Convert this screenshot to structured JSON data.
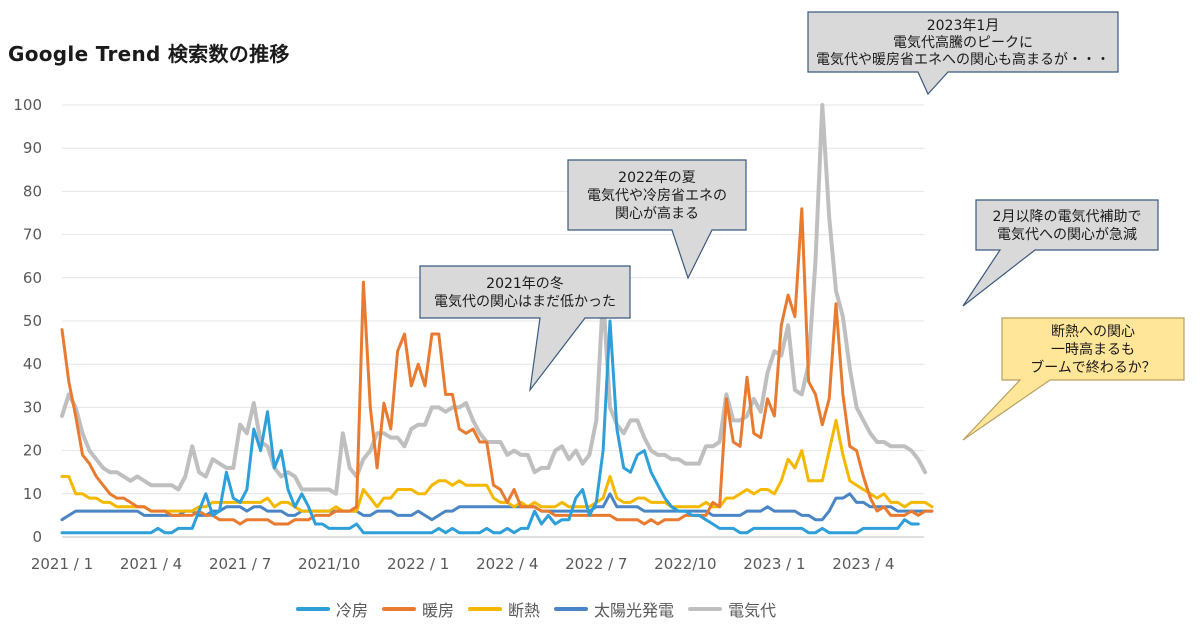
{
  "chart_data": {
    "type": "line",
    "title": "Google Trend 検索数の推移",
    "ylim": [
      0,
      100
    ],
    "y_ticks": [
      "0",
      "10",
      "20",
      "30",
      "40",
      "50",
      "60",
      "70",
      "80",
      "90",
      "100"
    ],
    "x_ticks": [
      "2021 / 1",
      "2021 / 4",
      "2021 / 7",
      "2021/10",
      "2022 / 1",
      "2022 / 4",
      "2022 / 7",
      "2022/10",
      "2023 / 1",
      "2023 / 4"
    ],
    "x_tick_week_index": [
      0,
      13,
      26,
      39,
      52,
      65,
      78,
      91,
      104,
      117
    ],
    "grid": true,
    "legend_position": "bottom",
    "series": [
      {
        "name": "冷房",
        "color": "#2E9FD8",
        "values": [
          1,
          1,
          1,
          1,
          1,
          1,
          1,
          1,
          1,
          1,
          1,
          1,
          1,
          1,
          2,
          1,
          1,
          2,
          2,
          2,
          6,
          10,
          5,
          6,
          15,
          9,
          8,
          11,
          25,
          20,
          29,
          16,
          20,
          11,
          7,
          10,
          7,
          3,
          3,
          2,
          2,
          2,
          2,
          3,
          1,
          1,
          1,
          1,
          1,
          1,
          1,
          1,
          1,
          1,
          1,
          2,
          1,
          2,
          1,
          1,
          1,
          1,
          2,
          1,
          1,
          2,
          1,
          2,
          2,
          6,
          3,
          5,
          3,
          4,
          4,
          9,
          11,
          5,
          8,
          20,
          50,
          25,
          16,
          15,
          19,
          20,
          15,
          12,
          9,
          7,
          6,
          6,
          5,
          5,
          4,
          3,
          2,
          2,
          2,
          1,
          1,
          2,
          2,
          2,
          2,
          2,
          2,
          2,
          2,
          1,
          1,
          2,
          1,
          1,
          1,
          1,
          1,
          2,
          2,
          2,
          2,
          2,
          2,
          4,
          3,
          3
        ]
      },
      {
        "name": "暖房",
        "color": "#E97B30",
        "values": [
          48,
          36,
          28,
          19,
          17,
          14,
          12,
          10,
          9,
          9,
          8,
          7,
          7,
          6,
          6,
          6,
          5,
          5,
          5,
          5,
          6,
          5,
          5,
          4,
          4,
          4,
          3,
          4,
          4,
          4,
          4,
          3,
          3,
          3,
          4,
          4,
          4,
          5,
          5,
          5,
          6,
          6,
          6,
          7,
          59,
          30,
          16,
          31,
          25,
          43,
          47,
          35,
          40,
          35,
          47,
          47,
          33,
          33,
          25,
          24,
          25,
          22,
          22,
          12,
          11,
          8,
          11,
          7,
          7,
          7,
          6,
          6,
          5,
          5,
          5,
          5,
          5,
          5,
          5,
          5,
          5,
          4,
          4,
          4,
          4,
          3,
          4,
          3,
          4,
          4,
          4,
          5,
          5,
          5,
          5,
          8,
          7,
          32,
          22,
          21,
          37,
          24,
          23,
          32,
          28,
          49,
          56,
          51,
          76,
          36,
          33,
          26,
          32,
          54,
          33,
          21,
          20,
          14,
          9,
          6,
          7,
          5,
          5,
          5,
          6,
          5,
          6,
          6
        ]
      },
      {
        "name": "断熱",
        "color": "#F5B800",
        "values": [
          14,
          14,
          10,
          10,
          9,
          9,
          8,
          8,
          7,
          7,
          7,
          7,
          7,
          6,
          6,
          6,
          6,
          6,
          6,
          6,
          7,
          7,
          8,
          8,
          8,
          8,
          8,
          8,
          8,
          8,
          9,
          7,
          8,
          8,
          7,
          6,
          6,
          6,
          6,
          6,
          7,
          6,
          6,
          6,
          11,
          9,
          7,
          9,
          9,
          11,
          11,
          11,
          10,
          10,
          12,
          13,
          13,
          12,
          13,
          12,
          12,
          12,
          12,
          9,
          8,
          8,
          7,
          8,
          7,
          8,
          7,
          7,
          7,
          8,
          7,
          7,
          7,
          7,
          8,
          9,
          14,
          9,
          8,
          8,
          9,
          9,
          8,
          8,
          8,
          7,
          7,
          7,
          7,
          7,
          8,
          7,
          7,
          9,
          9,
          10,
          11,
          10,
          11,
          11,
          10,
          13,
          18,
          16,
          20,
          13,
          13,
          13,
          20,
          27,
          19,
          13,
          12,
          11,
          10,
          9,
          10,
          8,
          8,
          7,
          8,
          8,
          8,
          7
        ]
      },
      {
        "name": "太陽光発電",
        "color": "#4A86C5",
        "values": [
          4,
          5,
          6,
          6,
          6,
          6,
          6,
          6,
          6,
          6,
          6,
          6,
          5,
          5,
          5,
          5,
          5,
          5,
          6,
          6,
          5,
          5,
          6,
          6,
          7,
          7,
          7,
          6,
          7,
          7,
          6,
          6,
          6,
          5,
          5,
          6,
          6,
          6,
          6,
          6,
          6,
          6,
          6,
          6,
          5,
          5,
          6,
          6,
          6,
          5,
          5,
          5,
          6,
          5,
          4,
          5,
          6,
          6,
          7,
          7,
          7,
          7,
          7,
          7,
          7,
          7,
          7,
          7,
          7,
          7,
          6,
          6,
          6,
          6,
          6,
          6,
          6,
          6,
          7,
          7,
          10,
          7,
          7,
          7,
          7,
          6,
          6,
          6,
          6,
          6,
          6,
          6,
          6,
          6,
          6,
          5,
          5,
          5,
          5,
          5,
          6,
          6,
          6,
          7,
          6,
          6,
          6,
          6,
          5,
          5,
          4,
          4,
          6,
          9,
          9,
          10,
          8,
          8,
          7,
          7,
          7,
          7,
          6,
          6,
          6,
          6,
          6,
          6
        ]
      },
      {
        "name": "電気代",
        "color": "#BFBFBF",
        "values": [
          28,
          33,
          30,
          24,
          20,
          18,
          16,
          15,
          15,
          14,
          13,
          14,
          13,
          12,
          12,
          12,
          12,
          11,
          14,
          21,
          15,
          14,
          18,
          17,
          16,
          16,
          26,
          24,
          31,
          22,
          21,
          16,
          14,
          15,
          14,
          11,
          11,
          11,
          11,
          11,
          10,
          24,
          16,
          14,
          18,
          20,
          24,
          24,
          23,
          23,
          21,
          25,
          26,
          26,
          30,
          30,
          29,
          30,
          30,
          31,
          27,
          24,
          22,
          22,
          22,
          19,
          20,
          19,
          19,
          15,
          16,
          16,
          20,
          21,
          18,
          20,
          17,
          19,
          27,
          56,
          30,
          26,
          24,
          27,
          27,
          23,
          20,
          19,
          19,
          18,
          18,
          17,
          17,
          17,
          21,
          21,
          22,
          33,
          27,
          27,
          28,
          32,
          29,
          38,
          43,
          42,
          49,
          34,
          33,
          40,
          64,
          100,
          74,
          57,
          51,
          39,
          30,
          27,
          24,
          22,
          22,
          21,
          21,
          21,
          20,
          18,
          15
        ]
      }
    ],
    "annotations": [
      {
        "lines": [
          "2021年の冬",
          "電気代の関心はまだ低かった"
        ],
        "style": "gray"
      },
      {
        "lines": [
          "2022年の夏",
          "電気代や冷房省エネの",
          "関心が高まる"
        ],
        "style": "gray"
      },
      {
        "lines": [
          "2023年1月",
          "電気代高騰のピークに",
          "電気代や暖房省エネへの関心も高まるが・・・"
        ],
        "style": "gray"
      },
      {
        "lines": [
          "2月以降の電気代補助で",
          "電気代への関心が急減"
        ],
        "style": "gray"
      },
      {
        "lines": [
          "断熱への関心",
          "一時高まるも",
          "ブームで終わるか？"
        ],
        "style": "yellow"
      }
    ]
  }
}
